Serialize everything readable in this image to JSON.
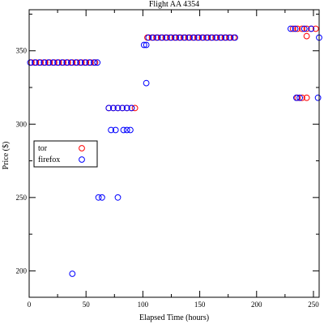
{
  "chart_data": {
    "type": "scatter",
    "title": "Flight AA 4354",
    "xlabel": "Elapsed Time (hours)",
    "ylabel": "Price ($)",
    "xlim": [
      0,
      255
    ],
    "ylim": [
      182,
      378
    ],
    "xticks": [
      0,
      50,
      100,
      150,
      200,
      250
    ],
    "yticks": [
      200,
      250,
      300,
      350
    ],
    "xtick_labels": [
      "0",
      "50",
      "100",
      "150",
      "200",
      "250"
    ],
    "ytick_labels": [
      "200",
      "250",
      "300",
      "350"
    ],
    "grid": false,
    "legend_position": "middle-left",
    "colors": {
      "tor": "#ff0000",
      "firefox": "#0000ff"
    },
    "series": [
      {
        "name": "tor",
        "x": [
          2,
          6,
          10,
          14,
          18,
          22,
          26,
          30,
          34,
          38,
          42,
          46,
          50,
          54,
          58,
          70,
          74,
          78,
          82,
          86,
          90,
          93,
          104,
          108,
          112,
          116,
          120,
          124,
          128,
          132,
          136,
          140,
          144,
          148,
          152,
          156,
          160,
          164,
          168,
          172,
          176,
          180,
          232,
          236,
          240,
          244,
          248,
          252,
          236,
          240,
          244,
          244
        ],
        "y": [
          342,
          342,
          342,
          342,
          342,
          342,
          342,
          342,
          342,
          342,
          342,
          342,
          342,
          342,
          342,
          311,
          311,
          311,
          311,
          311,
          311,
          311,
          359,
          359,
          359,
          359,
          359,
          359,
          359,
          359,
          359,
          359,
          359,
          359,
          359,
          359,
          359,
          359,
          359,
          359,
          359,
          359,
          365,
          365,
          365,
          365,
          365,
          365,
          318,
          318,
          318,
          360
        ]
      },
      {
        "name": "firefox",
        "x": [
          1,
          5,
          9,
          13,
          17,
          21,
          25,
          29,
          33,
          37,
          41,
          45,
          49,
          53,
          57,
          60,
          61,
          64,
          70,
          74,
          78,
          82,
          86,
          90,
          72,
          76,
          83,
          86,
          89,
          78,
          101,
          103,
          103,
          105,
          109,
          113,
          117,
          121,
          125,
          129,
          133,
          137,
          141,
          145,
          149,
          153,
          157,
          161,
          165,
          169,
          173,
          177,
          181,
          230,
          234,
          242,
          248,
          235,
          238,
          254,
          255,
          38
        ],
        "y": [
          342,
          342,
          342,
          342,
          342,
          342,
          342,
          342,
          342,
          342,
          342,
          342,
          342,
          342,
          342,
          342,
          250,
          250,
          311,
          311,
          311,
          311,
          311,
          311,
          296,
          296,
          296,
          296,
          296,
          250,
          354,
          354,
          328,
          359,
          359,
          359,
          359,
          359,
          359,
          359,
          359,
          359,
          359,
          359,
          359,
          359,
          359,
          359,
          359,
          359,
          359,
          359,
          359,
          365,
          365,
          365,
          365,
          318,
          318,
          318,
          359,
          198
        ]
      }
    ]
  }
}
